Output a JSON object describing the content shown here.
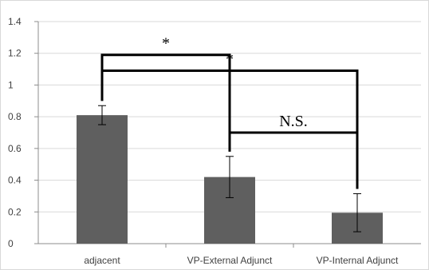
{
  "chart_data": {
    "type": "bar",
    "categories": [
      "adjacent",
      "VP-External Adjunct",
      "VP-Internal Adjunct"
    ],
    "values": [
      0.81,
      0.42,
      0.195
    ],
    "error_bars": [
      0.06,
      0.13,
      0.12
    ],
    "ylim": [
      0,
      1.4
    ],
    "yticks": [
      "0",
      "0.2",
      "0.4",
      "0.6",
      "0.8",
      "1",
      "1.2",
      "1.4"
    ],
    "title": "",
    "xlabel": "",
    "ylabel": "",
    "grid": true,
    "bar_color": "#5f5f5f",
    "annotations": [
      {
        "from": 0,
        "to": 1,
        "label": "*",
        "level": 1.19
      },
      {
        "from": 0,
        "to": 2,
        "label": "*",
        "level": 1.09
      },
      {
        "from": 1,
        "to": 2,
        "label": "N.S.",
        "level": 0.7
      }
    ]
  }
}
